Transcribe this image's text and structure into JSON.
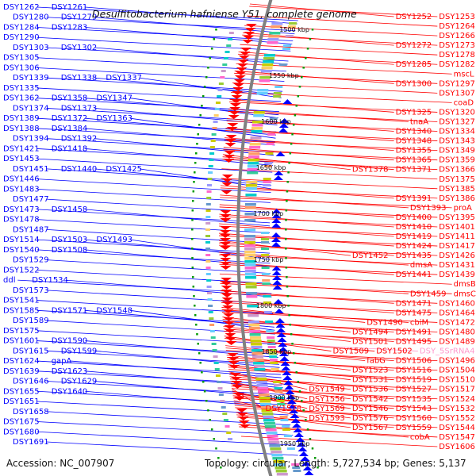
{
  "title": "Desulfitobacterium hafniense Y51, complete genome",
  "accession": "Accession: NC_007907",
  "summary": "Topology: circular; Length: 5,727,534 bp; Genes: 5,137",
  "colors": {
    "forward": "#ff0000",
    "reverse": "#0000ff",
    "rna": "#ff99cc",
    "backbone": "#808080",
    "tick": "#009900"
  },
  "kbp_ticks": [
    "1500 kbp",
    "1550 kbp",
    "1600 kbp",
    "1650 kbp",
    "1700 kbp",
    "1750 kbp",
    "1800 kbp",
    "1850 kbp",
    "1900 kbp",
    "1950 kbp"
  ],
  "left_labels": [
    [
      "DSY1262",
      "DSY1261"
    ],
    [
      "DSY1280",
      "DSY1279"
    ],
    [
      "DSY1284",
      "DSY1283"
    ],
    [
      "DSY1290"
    ],
    [
      "DSY1303",
      "DSY1302"
    ],
    [
      "DSY1305"
    ],
    [
      "DSY1306"
    ],
    [
      "DSY1339",
      "DSY1338",
      "DSY1337"
    ],
    [
      "DSY1335"
    ],
    [
      "DSY1362",
      "DSY1358",
      "DSY1347"
    ],
    [
      "DSY1374",
      "DSY1373"
    ],
    [
      "DSY1389",
      "DSY1372",
      "DSY1363"
    ],
    [
      "DSY1388",
      "DSY1384"
    ],
    [
      "DSY1394",
      "DSY1392"
    ],
    [
      "DSY1421",
      "DSY1418"
    ],
    [
      "DSY1453"
    ],
    [
      "DSY1451",
      "DSY1440",
      "DSY1425"
    ],
    [
      "DSY1446"
    ],
    [
      "DSY1483"
    ],
    [
      "DSY1477"
    ],
    [
      "DSY1473",
      "DSY1458"
    ],
    [
      "DSY1478"
    ],
    [
      "DSY1487"
    ],
    [
      "DSY1514",
      "DSY1503",
      "DSY1493"
    ],
    [
      "DSY1540",
      "DSY1508"
    ],
    [
      "DSY1529"
    ],
    [
      "DSY1522"
    ],
    [
      "ddl",
      "DSY1534"
    ],
    [
      "DSY1573"
    ],
    [
      "DSY1541"
    ],
    [
      "DSY1585",
      "DSY1571",
      "DSY1548"
    ],
    [
      "DSY1589"
    ],
    [
      "DSY1575"
    ],
    [
      "DSY1601",
      "DSY1590"
    ],
    [
      "DSY1615",
      "DSY1599"
    ],
    [
      "DSY1624",
      "gapA"
    ],
    [
      "DSY1639",
      "DSY1623"
    ],
    [
      "DSY1646",
      "DSY1629"
    ],
    [
      "DSY1655",
      "DSY1640"
    ],
    [
      "DSY1651"
    ],
    [
      "DSY1658"
    ],
    [
      "DSY1675"
    ],
    [
      "DSY1680"
    ],
    [
      "DSY1691"
    ]
  ],
  "right_labels": [
    [
      "DSY1252",
      "DSY1253"
    ],
    [
      "DSY1264"
    ],
    [
      "DSY1266"
    ],
    [
      "DSY1272",
      "DSY1273"
    ],
    [
      "DSY1278"
    ],
    [
      "DSY1285",
      "DSY1282"
    ],
    [
      "mscL"
    ],
    [
      "DSY1300",
      "DSY1297"
    ],
    [
      "DSY1307"
    ],
    [
      "coaD"
    ],
    [
      "DSY1325",
      "DSY1320"
    ],
    [
      "tnaA",
      "DSY1327"
    ],
    [
      "DSY1340",
      "DSY1334"
    ],
    [
      "DSY1348",
      "DSY1343"
    ],
    [
      "DSY1355",
      "DSY1349"
    ],
    [
      "DSY1365",
      "DSY1359"
    ],
    [
      "DSY1378",
      "DSY1371",
      "DSY1366"
    ],
    [
      "DSY1375"
    ],
    [
      "DSY1385"
    ],
    [
      "DSY1391",
      "DSY1386"
    ],
    [
      "DSY1393",
      "proA"
    ],
    [
      "DSY1400",
      "DSY1395"
    ],
    [
      "DSY1410",
      "DSY1401"
    ],
    [
      "DSY1419",
      "DSY1411"
    ],
    [
      "DSY1424",
      "DSY1417"
    ],
    [
      "DSY1452",
      "DSY1435",
      "DSY1426"
    ],
    [
      "dmsA",
      "DSY1431"
    ],
    [
      "DSY1441",
      "DSY1439"
    ],
    [
      "dmsB"
    ],
    [
      "DSY1459",
      "dmsC"
    ],
    [
      "DSY1471",
      "DSY1460"
    ],
    [
      "DSY1475",
      "DSY1464"
    ],
    [
      "DSY1490",
      "cbiM",
      "DSY1472"
    ],
    [
      "DSY1494",
      "DSY1491",
      "DSY1480"
    ],
    [
      "DSY1501",
      "DSY1495",
      "DSY1489"
    ],
    [
      "DSY1509",
      "DSY1502",
      "DSY_5SrRNA4"
    ],
    [
      "fabG",
      "DSY1506",
      "DSY1496"
    ],
    [
      "DSY1523",
      "DSY1516",
      "DSY1504"
    ],
    [
      "DSY1531",
      "DSY1519",
      "DSY1510"
    ],
    [
      "DSY1549",
      "DSY1536",
      "DSY1527",
      "DSY1517"
    ],
    [
      "DSY1556",
      "DSY1542",
      "DSY1535",
      "DSY1524"
    ],
    [
      "DSY1578",
      "DSY1569",
      "DSY1546",
      "DSY1543",
      "DSY1532"
    ],
    [
      "DSY1593",
      "DSY1576",
      "DSY1560",
      "DSY1552"
    ],
    [
      "DSY1567",
      "DSY1559",
      "DSY1544"
    ],
    [
      "cobA",
      "DSY1547"
    ],
    [
      "DSY1606"
    ]
  ]
}
